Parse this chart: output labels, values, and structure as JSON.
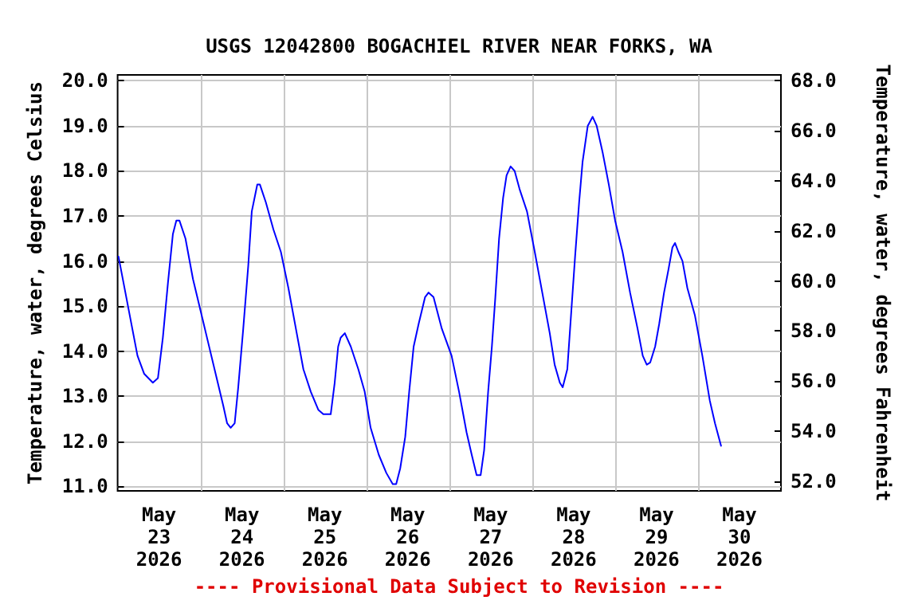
{
  "chart_data": {
    "type": "line",
    "title": "USGS 12042800 BOGACHIEL RIVER NEAR FORKS, WA",
    "ylabel": "Temperature, water, degrees Celsius",
    "y2label": "Temperature, water, degrees Fahrenheit",
    "annotations": [
      "---- Provisional Data Subject to Revision ----"
    ],
    "x": [
      "2026-05-23T00:15",
      "2026-05-23T03:00",
      "2026-05-23T05:45",
      "2026-05-23T07:40",
      "2026-05-23T10:12",
      "2026-05-23T11:40",
      "2026-05-23T13:06",
      "2026-05-23T14:33",
      "2026-05-23T16:00",
      "2026-05-23T17:00",
      "2026-05-23T17:53",
      "2026-05-23T19:38",
      "2026-05-23T21:49",
      "2026-05-24T00:00",
      "2026-05-24T02:11",
      "2026-05-24T04:22",
      "2026-05-24T06:33",
      "2026-05-24T07:42",
      "2026-05-24T08:44",
      "2026-05-24T09:53",
      "2026-05-24T10:55",
      "2026-05-24T12:22",
      "2026-05-24T13:49",
      "2026-05-24T14:50",
      "2026-05-24T16:26",
      "2026-05-24T17:10",
      "2026-05-24T18:55",
      "2026-05-24T21:06",
      "2026-05-24T23:16",
      "2026-05-25T01:26",
      "2026-05-25T03:36",
      "2026-05-25T05:46",
      "2026-05-25T07:55",
      "2026-05-25T10:05",
      "2026-05-25T11:32",
      "2026-05-25T13:41",
      "2026-05-25T14:50",
      "2026-05-25T15:50",
      "2026-05-25T16:34",
      "2026-05-25T17:46",
      "2026-05-25T19:30",
      "2026-05-25T21:40",
      "2026-05-25T23:31",
      "2026-05-26T01:14",
      "2026-05-26T03:36",
      "2026-05-26T05:46",
      "2026-05-26T07:38",
      "2026-05-26T08:38",
      "2026-05-26T09:48",
      "2026-05-26T11:15",
      "2026-05-26T12:24",
      "2026-05-26T13:41",
      "2026-05-26T15:07",
      "2026-05-26T17:00",
      "2026-05-26T18:00",
      "2026-05-26T19:26",
      "2026-05-26T21:50",
      "2026-05-27T00:40",
      "2026-05-27T02:50",
      "2026-05-27T05:00",
      "2026-05-27T06:30",
      "2026-05-27T07:55",
      "2026-05-27T09:05",
      "2026-05-27T10:05",
      "2026-05-27T11:15",
      "2026-05-27T12:20",
      "2026-05-27T13:20",
      "2026-05-27T14:25",
      "2026-05-27T15:35",
      "2026-05-27T16:35",
      "2026-05-27T17:45",
      "2026-05-27T18:55",
      "2026-05-27T20:20",
      "2026-05-27T22:30",
      "2026-05-28T00:45",
      "2026-05-28T02:55",
      "2026-05-28T05:05",
      "2026-05-28T06:30",
      "2026-05-28T08:00",
      "2026-05-28T08:50",
      "2026-05-28T10:10",
      "2026-05-28T11:20",
      "2026-05-28T12:25",
      "2026-05-28T13:35",
      "2026-05-28T14:35",
      "2026-05-28T16:05",
      "2026-05-28T17:30",
      "2026-05-28T18:40",
      "2026-05-28T20:25",
      "2026-05-28T22:10",
      "2026-05-29T00:00",
      "2026-05-29T02:10",
      "2026-05-29T04:20",
      "2026-05-29T06:30",
      "2026-05-29T08:00",
      "2026-05-29T09:10",
      "2026-05-29T10:10",
      "2026-05-29T11:35",
      "2026-05-29T12:45",
      "2026-05-29T14:10",
      "2026-05-29T15:25",
      "2026-05-29T16:35",
      "2026-05-29T17:20",
      "2026-05-29T18:20",
      "2026-05-29T19:30",
      "2026-05-29T20:55",
      "2026-05-29T23:05",
      "2026-05-30T01:15",
      "2026-05-30T03:25",
      "2026-05-30T04:55",
      "2026-05-30T06:40"
    ],
    "series": [
      {
        "color": "#0000ff",
        "values": [
          16.1,
          15.0,
          13.9,
          13.5,
          13.3,
          13.4,
          14.3,
          15.5,
          16.6,
          16.9,
          16.9,
          16.5,
          15.6,
          14.9,
          14.2,
          13.5,
          12.8,
          12.4,
          12.3,
          12.4,
          13.2,
          14.5,
          15.9,
          17.1,
          17.7,
          17.7,
          17.3,
          16.7,
          16.2,
          15.4,
          14.5,
          13.6,
          13.1,
          12.7,
          12.6,
          12.6,
          13.3,
          14.1,
          14.3,
          14.4,
          14.1,
          13.6,
          13.1,
          12.3,
          11.7,
          11.3,
          11.05,
          11.05,
          11.4,
          12.1,
          13.1,
          14.1,
          14.6,
          15.2,
          15.3,
          15.2,
          14.5,
          13.9,
          13.1,
          12.2,
          11.7,
          11.25,
          11.25,
          11.8,
          13.1,
          14.1,
          15.2,
          16.5,
          17.4,
          17.9,
          18.1,
          18.0,
          17.6,
          17.1,
          16.2,
          15.3,
          14.4,
          13.7,
          13.3,
          13.2,
          13.6,
          14.9,
          16.1,
          17.3,
          18.2,
          19.0,
          19.2,
          19.0,
          18.4,
          17.7,
          16.9,
          16.2,
          15.3,
          14.5,
          13.9,
          13.7,
          13.75,
          14.1,
          14.6,
          15.3,
          15.8,
          16.3,
          16.4,
          16.2,
          16.0,
          15.4,
          14.8,
          13.9,
          12.9,
          12.4,
          11.9
        ]
      }
    ],
    "xlim": [
      "2026-05-23T00:00",
      "2026-05-31T00:00"
    ],
    "xticks": [
      {
        "value": "2026-05-23T12:00",
        "label": "May\n23\n2026"
      },
      {
        "value": "2026-05-24T00:00",
        "label": null
      },
      {
        "value": "2026-05-24T12:00",
        "label": "May\n24\n2026"
      },
      {
        "value": "2026-05-25T00:00",
        "label": null
      },
      {
        "value": "2026-05-25T12:00",
        "label": "May\n25\n2026"
      },
      {
        "value": "2026-05-26T00:00",
        "label": null
      },
      {
        "value": "2026-05-26T12:00",
        "label": "May\n26\n2026"
      },
      {
        "value": "2026-05-27T00:00",
        "label": null
      },
      {
        "value": "2026-05-27T12:00",
        "label": "May\n27\n2026"
      },
      {
        "value": "2026-05-28T00:00",
        "label": null
      },
      {
        "value": "2026-05-28T12:00",
        "label": "May\n28\n2026"
      },
      {
        "value": "2026-05-29T00:00",
        "label": null
      },
      {
        "value": "2026-05-29T12:00",
        "label": "May\n29\n2026"
      },
      {
        "value": "2026-05-30T00:00",
        "label": null
      },
      {
        "value": "2026-05-30T12:00",
        "label": "May\n30\n2026"
      }
    ],
    "ylim": [
      10.9,
      20.13
    ],
    "yticks": [
      {
        "value": 11,
        "label": "11.0"
      },
      {
        "value": 12,
        "label": "12.0"
      },
      {
        "value": 13,
        "label": "13.0"
      },
      {
        "value": 14,
        "label": "14.0"
      },
      {
        "value": 15,
        "label": "15.0"
      },
      {
        "value": 16,
        "label": "16.0"
      },
      {
        "value": 17,
        "label": "17.0"
      },
      {
        "value": 18,
        "label": "18.0"
      },
      {
        "value": 19,
        "label": "19.0"
      },
      {
        "value": 20,
        "label": "20.0"
      }
    ],
    "y2lim": [
      51.62,
      68.23
    ],
    "y2ticks": [
      {
        "value": 52,
        "label": "52.0"
      },
      {
        "value": 54,
        "label": "54.0"
      },
      {
        "value": 56,
        "label": "56.0"
      },
      {
        "value": 58,
        "label": "58.0"
      },
      {
        "value": 60,
        "label": "60.0"
      },
      {
        "value": 62,
        "label": "62.0"
      },
      {
        "value": 64,
        "label": "64.0"
      },
      {
        "value": 66,
        "label": "66.0"
      },
      {
        "value": 68,
        "label": "68.0"
      }
    ],
    "grid": true,
    "marker": "none",
    "line_style": "solid"
  }
}
